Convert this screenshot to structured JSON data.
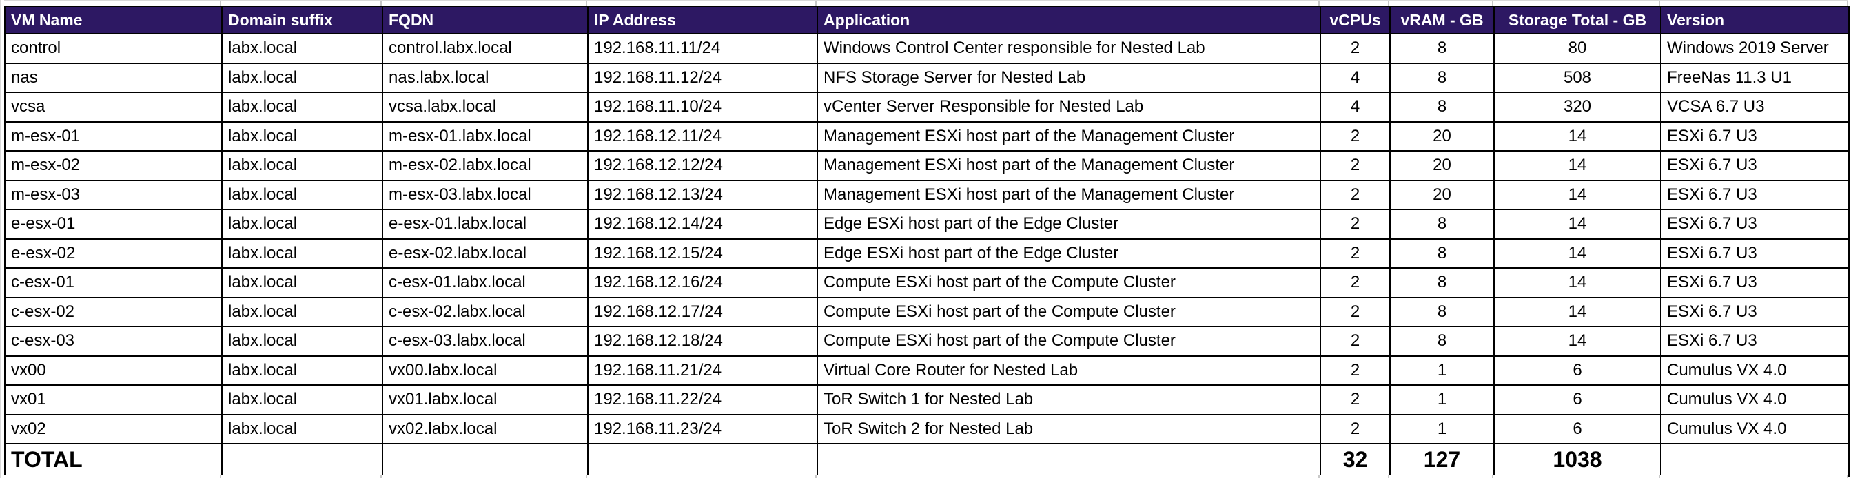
{
  "table": {
    "columns": [
      "VM Name",
      "Domain suffix",
      "FQDN",
      "IP Address",
      "Application",
      "vCPUs",
      "vRAM - GB",
      "Storage Total - GB",
      "Version"
    ],
    "rows": [
      [
        "control",
        "labx.local",
        "control.labx.local",
        "192.168.11.11/24",
        "Windows Control Center responsible for Nested Lab",
        "2",
        "8",
        "80",
        "Windows 2019 Server"
      ],
      [
        "nas",
        "labx.local",
        "nas.labx.local",
        "192.168.11.12/24",
        "NFS Storage Server for Nested Lab",
        "4",
        "8",
        "508",
        "FreeNas 11.3 U1"
      ],
      [
        "vcsa",
        "labx.local",
        "vcsa.labx.local",
        "192.168.11.10/24",
        "vCenter Server Responsible for Nested Lab",
        "4",
        "8",
        "320",
        "VCSA 6.7 U3"
      ],
      [
        "m-esx-01",
        "labx.local",
        "m-esx-01.labx.local",
        "192.168.12.11/24",
        "Management ESXi host part of the Management Cluster",
        "2",
        "20",
        "14",
        "ESXi 6.7 U3"
      ],
      [
        "m-esx-02",
        "labx.local",
        "m-esx-02.labx.local",
        "192.168.12.12/24",
        "Management ESXi host part of the Management Cluster",
        "2",
        "20",
        "14",
        "ESXi 6.7 U3"
      ],
      [
        "m-esx-03",
        "labx.local",
        "m-esx-03.labx.local",
        "192.168.12.13/24",
        "Management ESXi host part of the Management Cluster",
        "2",
        "20",
        "14",
        "ESXi 6.7 U3"
      ],
      [
        "e-esx-01",
        "labx.local",
        "e-esx-01.labx.local",
        "192.168.12.14/24",
        "Edge ESXi host part of the Edge Cluster",
        "2",
        "8",
        "14",
        "ESXi 6.7 U3"
      ],
      [
        "e-esx-02",
        "labx.local",
        "e-esx-02.labx.local",
        "192.168.12.15/24",
        "Edge ESXi host part of the Edge Cluster",
        "2",
        "8",
        "14",
        "ESXi 6.7 U3"
      ],
      [
        "c-esx-01",
        "labx.local",
        "c-esx-01.labx.local",
        "192.168.12.16/24",
        "Compute ESXi host part of the Compute Cluster",
        "2",
        "8",
        "14",
        "ESXi 6.7 U3"
      ],
      [
        "c-esx-02",
        "labx.local",
        "c-esx-02.labx.local",
        "192.168.12.17/24",
        "Compute ESXi host part of the Compute Cluster",
        "2",
        "8",
        "14",
        "ESXi 6.7 U3"
      ],
      [
        "c-esx-03",
        "labx.local",
        "c-esx-03.labx.local",
        "192.168.12.18/24",
        "Compute ESXi host part of the Compute Cluster",
        "2",
        "8",
        "14",
        "ESXi 6.7 U3"
      ],
      [
        "vx00",
        "labx.local",
        "vx00.labx.local",
        "192.168.11.21/24",
        "Virtual Core Router for Nested Lab",
        "2",
        "1",
        "6",
        "Cumulus VX 4.0"
      ],
      [
        "vx01",
        "labx.local",
        "vx01.labx.local",
        "192.168.11.22/24",
        "ToR Switch 1 for Nested Lab",
        "2",
        "1",
        "6",
        "Cumulus VX 4.0"
      ],
      [
        "vx02",
        "labx.local",
        "vx02.labx.local",
        "192.168.11.23/24",
        "ToR Switch 2 for Nested Lab",
        "2",
        "1",
        "6",
        "Cumulus VX 4.0"
      ]
    ],
    "total_row": {
      "label": "TOTAL",
      "vcpus": "32",
      "vram": "127",
      "storage": "1038"
    }
  },
  "colors": {
    "header_bg": "#2d1863",
    "header_text": "#ffffff",
    "grid": "#000000"
  }
}
